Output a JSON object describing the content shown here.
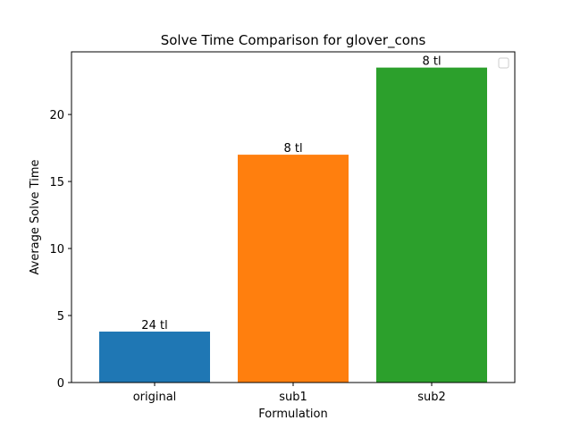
{
  "chart_data": {
    "type": "bar",
    "title": "Solve Time Comparison for glover_cons",
    "xlabel": "Formulation",
    "ylabel": "Average Solve Time",
    "categories": [
      "original",
      "sub1",
      "sub2"
    ],
    "values": [
      3.8,
      17.0,
      23.5
    ],
    "bar_labels": [
      "24 tl",
      "8 tl",
      "8 tl"
    ],
    "colors": [
      "#1f77b4",
      "#ff7f0e",
      "#2ca02c"
    ],
    "ylim": [
      0,
      24.675
    ],
    "yticks": [
      0,
      5,
      10,
      15,
      20
    ],
    "grid": false,
    "legend": {
      "placement": "top-right",
      "entries": []
    }
  }
}
